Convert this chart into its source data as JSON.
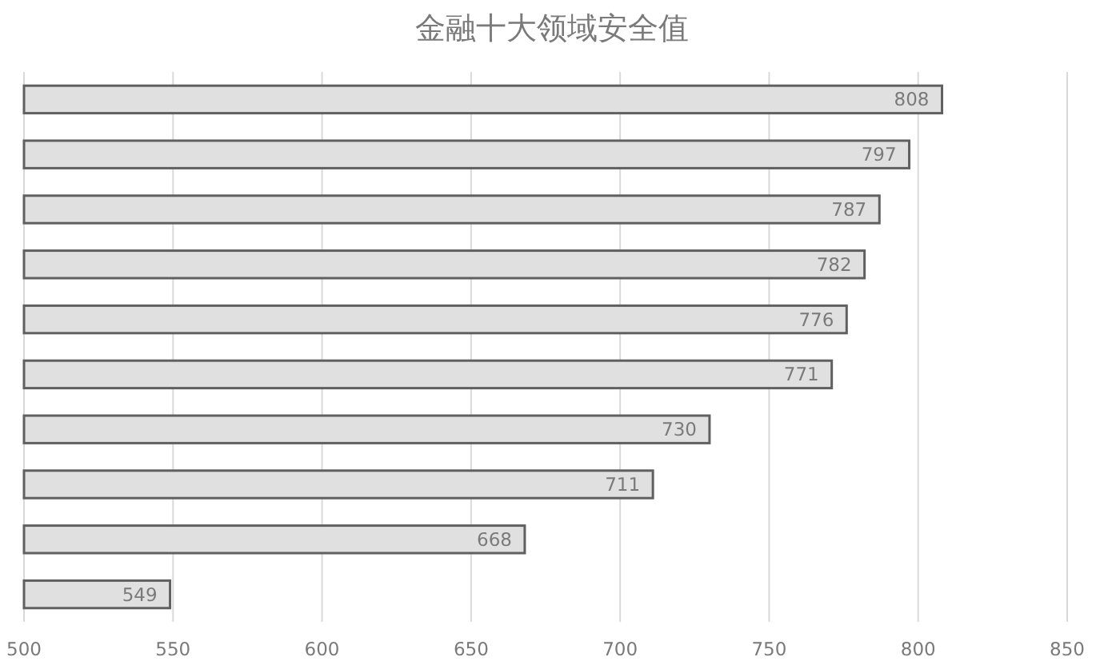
{
  "chart_data": {
    "type": "bar",
    "orientation": "horizontal",
    "title": "金融十大领域安全值",
    "categories": [
      null,
      null,
      null,
      null,
      null,
      null,
      null,
      null,
      null,
      null
    ],
    "values": [
      808,
      797,
      787,
      782,
      776,
      771,
      730,
      711,
      668,
      549
    ],
    "color": "#e0e0e0",
    "xlim": [
      500,
      850
    ],
    "xticks": [
      500,
      550,
      600,
      650,
      700,
      750,
      800,
      850
    ],
    "grid": "x",
    "data_labels": true
  }
}
